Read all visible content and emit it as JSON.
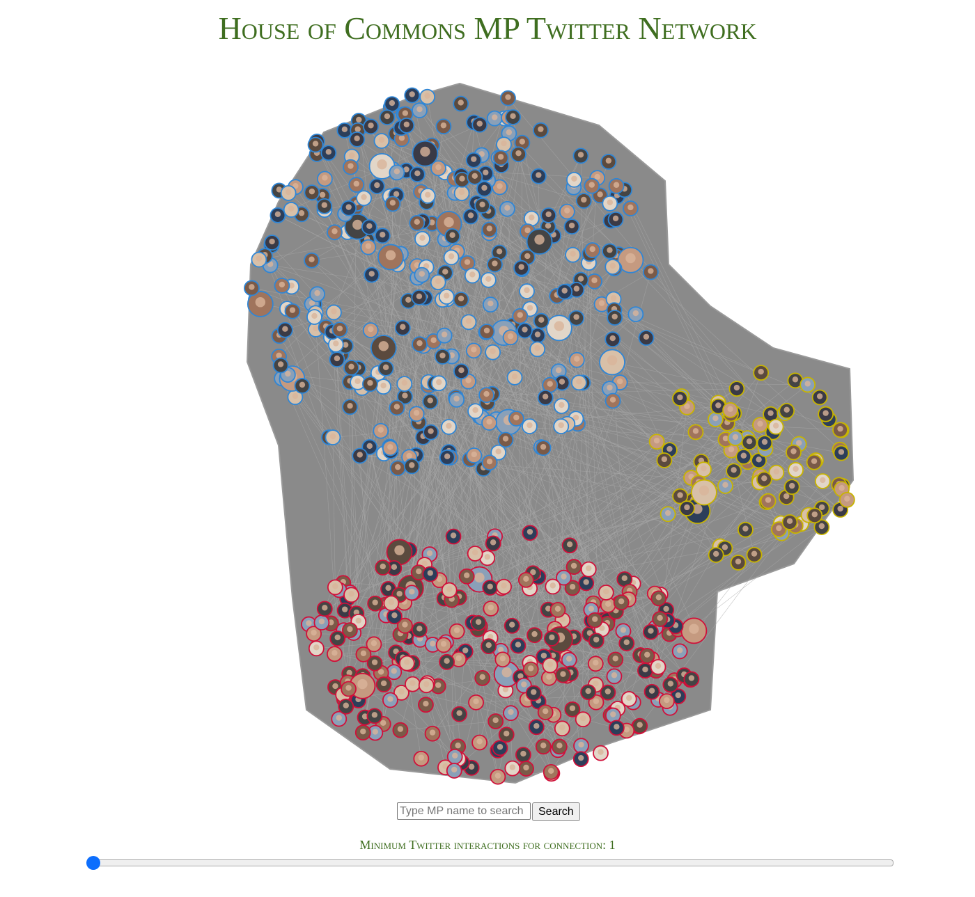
{
  "title": "House of Commons MP Twitter Network",
  "search": {
    "placeholder": "Type MP name to search",
    "button": "Search"
  },
  "slider": {
    "label": "Minimum Twitter interactions for connection:",
    "value": 1
  }
}
